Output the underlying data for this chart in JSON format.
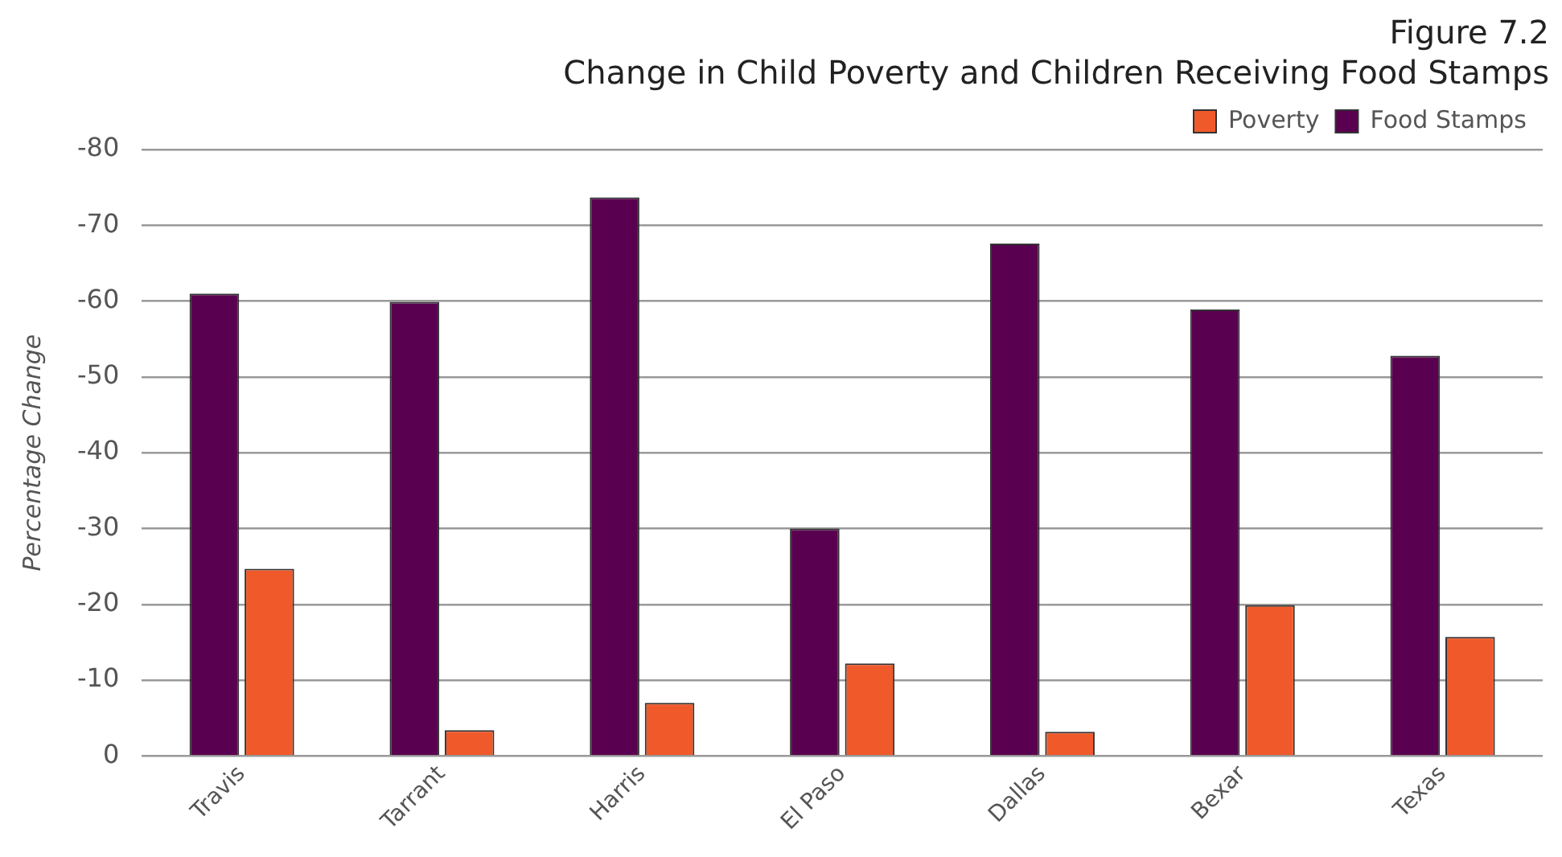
{
  "chart_data": {
    "type": "bar",
    "subtitle": "Figure 7.2",
    "title": "Change in Child Poverty and Children Receiving Food Stamps",
    "ylabel": "Percentage Change",
    "categories": [
      "Travis",
      "Tarrant",
      "Harris",
      "El Paso",
      "Dallas",
      "Bexar",
      "Texas"
    ],
    "series": [
      {
        "name": "Food Stamps",
        "color": "#5a0050",
        "values": [
          -61,
          -59.9,
          -73.7,
          -30,
          -67.6,
          -58.9,
          -52.8
        ]
      },
      {
        "name": "Poverty",
        "color": "#f05a2b",
        "values": [
          -24.7,
          -3.4,
          -7,
          -12.2,
          -3.2,
          -19.9,
          -15.7
        ]
      }
    ],
    "ylim": [
      0,
      -80
    ],
    "yticks": [
      0,
      -10,
      -20,
      -30,
      -40,
      -50,
      -60,
      -70,
      -80
    ],
    "grid": "y",
    "legend": "top right"
  }
}
